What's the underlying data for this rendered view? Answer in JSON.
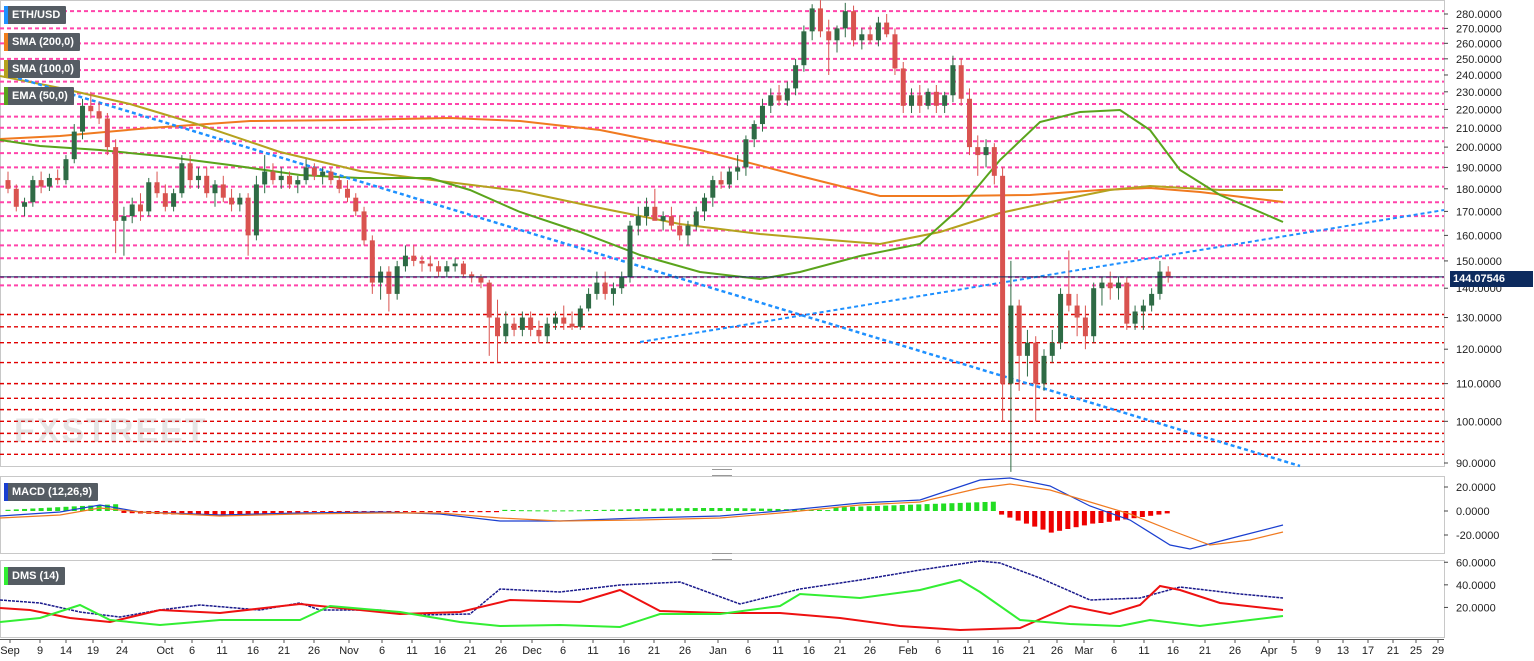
{
  "chart_data": {
    "type": "candlestick",
    "symbol": "ETH/USD",
    "last_price": "144.07546",
    "indicators": [
      {
        "label": "SMA (200,0)",
        "color": "#ef7e1c"
      },
      {
        "label": "SMA (100,0)",
        "color": "#b5a21e"
      },
      {
        "label": "EMA (50,0)",
        "color": "#5aa41c"
      }
    ],
    "price_axis": {
      "ticks": [
        "280.0000",
        "270.0000",
        "260.0000",
        "250.0000",
        "240.0000",
        "230.0000",
        "220.0000",
        "210.0000",
        "200.0000",
        "190.0000",
        "180.0000",
        "170.0000",
        "160.0000",
        "150.0000",
        "140.0000",
        "130.0000",
        "120.0000",
        "110.0000",
        "100.0000",
        "90.0000"
      ],
      "scale": "log",
      "range": [
        88,
        287
      ]
    },
    "x_axis": {
      "ticks": [
        "Sep",
        "9",
        "14",
        "19",
        "24",
        "Oct",
        "6",
        "11",
        "16",
        "21",
        "26",
        "Nov",
        "6",
        "11",
        "16",
        "21",
        "26",
        "Dec",
        "6",
        "11",
        "16",
        "21",
        "26",
        "Jan",
        "6",
        "11",
        "16",
        "21",
        "26",
        "Feb",
        "6",
        "11",
        "16",
        "21",
        "26",
        "Mar",
        "6",
        "11",
        "16",
        "21",
        "26",
        "Apr",
        "5",
        "9",
        "13",
        "17",
        "21",
        "25",
        "29"
      ]
    },
    "horizontal_levels_pink": [
      282,
      270,
      260,
      250,
      243,
      236,
      229,
      223,
      216,
      210,
      203,
      197,
      190,
      181,
      174,
      168,
      162,
      156,
      151,
      144,
      141
    ],
    "horizontal_levels_red": [
      131,
      127,
      122,
      116,
      110,
      106,
      103,
      100,
      97,
      95,
      92
    ],
    "candles": [
      {
        "o": 184,
        "h": 188,
        "l": 178,
        "c": 180
      },
      {
        "o": 180,
        "h": 182,
        "l": 170,
        "c": 172
      },
      {
        "o": 172,
        "h": 176,
        "l": 168,
        "c": 174
      },
      {
        "o": 174,
        "h": 186,
        "l": 172,
        "c": 184
      },
      {
        "o": 184,
        "h": 188,
        "l": 178,
        "c": 181
      },
      {
        "o": 181,
        "h": 187,
        "l": 179,
        "c": 185
      },
      {
        "o": 185,
        "h": 189,
        "l": 182,
        "c": 184
      },
      {
        "o": 184,
        "h": 196,
        "l": 182,
        "c": 194
      },
      {
        "o": 194,
        "h": 212,
        "l": 192,
        "c": 208
      },
      {
        "o": 208,
        "h": 226,
        "l": 204,
        "c": 222
      },
      {
        "o": 222,
        "h": 230,
        "l": 215,
        "c": 219
      },
      {
        "o": 219,
        "h": 224,
        "l": 212,
        "c": 215
      },
      {
        "o": 215,
        "h": 218,
        "l": 196,
        "c": 200
      },
      {
        "o": 200,
        "h": 204,
        "l": 153,
        "c": 166
      },
      {
        "o": 166,
        "h": 172,
        "l": 152,
        "c": 168
      },
      {
        "o": 168,
        "h": 176,
        "l": 165,
        "c": 173
      },
      {
        "o": 173,
        "h": 178,
        "l": 166,
        "c": 170
      },
      {
        "o": 170,
        "h": 185,
        "l": 168,
        "c": 183
      },
      {
        "o": 183,
        "h": 188,
        "l": 176,
        "c": 178
      },
      {
        "o": 178,
        "h": 182,
        "l": 170,
        "c": 172
      },
      {
        "o": 172,
        "h": 180,
        "l": 170,
        "c": 178
      },
      {
        "o": 178,
        "h": 196,
        "l": 176,
        "c": 192
      },
      {
        "o": 192,
        "h": 196,
        "l": 180,
        "c": 184
      },
      {
        "o": 184,
        "h": 190,
        "l": 180,
        "c": 186
      },
      {
        "o": 186,
        "h": 190,
        "l": 176,
        "c": 178
      },
      {
        "o": 178,
        "h": 184,
        "l": 172,
        "c": 182
      },
      {
        "o": 182,
        "h": 186,
        "l": 174,
        "c": 176
      },
      {
        "o": 176,
        "h": 180,
        "l": 170,
        "c": 173
      },
      {
        "o": 173,
        "h": 178,
        "l": 170,
        "c": 176
      },
      {
        "o": 176,
        "h": 178,
        "l": 152,
        "c": 160
      },
      {
        "o": 160,
        "h": 186,
        "l": 158,
        "c": 182
      },
      {
        "o": 182,
        "h": 196,
        "l": 178,
        "c": 188
      },
      {
        "o": 188,
        "h": 192,
        "l": 182,
        "c": 184
      },
      {
        "o": 184,
        "h": 190,
        "l": 180,
        "c": 186
      },
      {
        "o": 186,
        "h": 188,
        "l": 180,
        "c": 182
      },
      {
        "o": 182,
        "h": 186,
        "l": 178,
        "c": 184
      },
      {
        "o": 184,
        "h": 194,
        "l": 182,
        "c": 190
      },
      {
        "o": 190,
        "h": 192,
        "l": 184,
        "c": 186
      },
      {
        "o": 186,
        "h": 190,
        "l": 182,
        "c": 188
      },
      {
        "o": 188,
        "h": 190,
        "l": 182,
        "c": 184
      },
      {
        "o": 184,
        "h": 186,
        "l": 178,
        "c": 180
      },
      {
        "o": 180,
        "h": 184,
        "l": 174,
        "c": 176
      },
      {
        "o": 176,
        "h": 178,
        "l": 168,
        "c": 170
      },
      {
        "o": 170,
        "h": 172,
        "l": 156,
        "c": 158
      },
      {
        "o": 158,
        "h": 160,
        "l": 138,
        "c": 142
      },
      {
        "o": 142,
        "h": 148,
        "l": 136,
        "c": 146
      },
      {
        "o": 146,
        "h": 148,
        "l": 132,
        "c": 138
      },
      {
        "o": 138,
        "h": 150,
        "l": 136,
        "c": 148
      },
      {
        "o": 148,
        "h": 156,
        "l": 146,
        "c": 152
      },
      {
        "o": 152,
        "h": 156,
        "l": 148,
        "c": 150
      },
      {
        "o": 150,
        "h": 152,
        "l": 146,
        "c": 149
      },
      {
        "o": 149,
        "h": 152,
        "l": 146,
        "c": 148
      },
      {
        "o": 148,
        "h": 150,
        "l": 144,
        "c": 146
      },
      {
        "o": 146,
        "h": 150,
        "l": 144,
        "c": 148
      },
      {
        "o": 148,
        "h": 151,
        "l": 146,
        "c": 149
      },
      {
        "o": 149,
        "h": 150,
        "l": 144,
        "c": 145
      },
      {
        "o": 145,
        "h": 146,
        "l": 142,
        "c": 144
      },
      {
        "o": 144,
        "h": 145,
        "l": 140,
        "c": 142
      },
      {
        "o": 142,
        "h": 143,
        "l": 118,
        "c": 130
      },
      {
        "o": 130,
        "h": 136,
        "l": 116,
        "c": 124
      },
      {
        "o": 124,
        "h": 132,
        "l": 122,
        "c": 128
      },
      {
        "o": 128,
        "h": 130,
        "l": 124,
        "c": 126
      },
      {
        "o": 126,
        "h": 132,
        "l": 124,
        "c": 130
      },
      {
        "o": 130,
        "h": 132,
        "l": 124,
        "c": 126
      },
      {
        "o": 126,
        "h": 129,
        "l": 122,
        "c": 124
      },
      {
        "o": 124,
        "h": 130,
        "l": 122,
        "c": 128
      },
      {
        "o": 128,
        "h": 132,
        "l": 126,
        "c": 130
      },
      {
        "o": 130,
        "h": 134,
        "l": 126,
        "c": 128
      },
      {
        "o": 128,
        "h": 132,
        "l": 126,
        "c": 127
      },
      {
        "o": 127,
        "h": 134,
        "l": 126,
        "c": 133
      },
      {
        "o": 133,
        "h": 140,
        "l": 132,
        "c": 138
      },
      {
        "o": 138,
        "h": 146,
        "l": 136,
        "c": 142
      },
      {
        "o": 142,
        "h": 146,
        "l": 136,
        "c": 138
      },
      {
        "o": 138,
        "h": 142,
        "l": 134,
        "c": 140
      },
      {
        "o": 140,
        "h": 146,
        "l": 138,
        "c": 144
      },
      {
        "o": 144,
        "h": 166,
        "l": 142,
        "c": 164
      },
      {
        "o": 164,
        "h": 172,
        "l": 160,
        "c": 168
      },
      {
        "o": 168,
        "h": 176,
        "l": 164,
        "c": 172
      },
      {
        "o": 172,
        "h": 180,
        "l": 168,
        "c": 166
      },
      {
        "o": 166,
        "h": 170,
        "l": 162,
        "c": 168
      },
      {
        "o": 168,
        "h": 172,
        "l": 162,
        "c": 164
      },
      {
        "o": 164,
        "h": 168,
        "l": 158,
        "c": 160
      },
      {
        "o": 160,
        "h": 166,
        "l": 156,
        "c": 164
      },
      {
        "o": 164,
        "h": 172,
        "l": 162,
        "c": 170
      },
      {
        "o": 170,
        "h": 178,
        "l": 166,
        "c": 176
      },
      {
        "o": 176,
        "h": 186,
        "l": 172,
        "c": 184
      },
      {
        "o": 184,
        "h": 188,
        "l": 180,
        "c": 182
      },
      {
        "o": 182,
        "h": 190,
        "l": 180,
        "c": 188
      },
      {
        "o": 188,
        "h": 196,
        "l": 184,
        "c": 190
      },
      {
        "o": 190,
        "h": 206,
        "l": 186,
        "c": 204
      },
      {
        "o": 204,
        "h": 214,
        "l": 200,
        "c": 212
      },
      {
        "o": 212,
        "h": 226,
        "l": 208,
        "c": 222
      },
      {
        "o": 222,
        "h": 232,
        "l": 218,
        "c": 228
      },
      {
        "o": 228,
        "h": 234,
        "l": 222,
        "c": 225
      },
      {
        "o": 225,
        "h": 236,
        "l": 222,
        "c": 232
      },
      {
        "o": 232,
        "h": 250,
        "l": 228,
        "c": 246
      },
      {
        "o": 246,
        "h": 272,
        "l": 242,
        "c": 268
      },
      {
        "o": 268,
        "h": 287,
        "l": 262,
        "c": 284
      },
      {
        "o": 284,
        "h": 290,
        "l": 264,
        "c": 268
      },
      {
        "o": 268,
        "h": 276,
        "l": 240,
        "c": 262
      },
      {
        "o": 262,
        "h": 272,
        "l": 254,
        "c": 270
      },
      {
        "o": 270,
        "h": 288,
        "l": 264,
        "c": 282
      },
      {
        "o": 282,
        "h": 286,
        "l": 258,
        "c": 262
      },
      {
        "o": 262,
        "h": 270,
        "l": 256,
        "c": 266
      },
      {
        "o": 266,
        "h": 272,
        "l": 260,
        "c": 262
      },
      {
        "o": 262,
        "h": 278,
        "l": 258,
        "c": 274
      },
      {
        "o": 274,
        "h": 280,
        "l": 264,
        "c": 266
      },
      {
        "o": 266,
        "h": 270,
        "l": 240,
        "c": 244
      },
      {
        "o": 244,
        "h": 248,
        "l": 218,
        "c": 222
      },
      {
        "o": 222,
        "h": 232,
        "l": 218,
        "c": 228
      },
      {
        "o": 228,
        "h": 234,
        "l": 218,
        "c": 222
      },
      {
        "o": 222,
        "h": 232,
        "l": 220,
        "c": 230
      },
      {
        "o": 230,
        "h": 234,
        "l": 218,
        "c": 222
      },
      {
        "o": 222,
        "h": 230,
        "l": 218,
        "c": 228
      },
      {
        "o": 228,
        "h": 252,
        "l": 224,
        "c": 246
      },
      {
        "o": 246,
        "h": 250,
        "l": 222,
        "c": 226
      },
      {
        "o": 226,
        "h": 232,
        "l": 196,
        "c": 200
      },
      {
        "o": 200,
        "h": 206,
        "l": 186,
        "c": 196
      },
      {
        "o": 196,
        "h": 204,
        "l": 190,
        "c": 200
      },
      {
        "o": 200,
        "h": 202,
        "l": 182,
        "c": 186
      },
      {
        "o": 186,
        "h": 190,
        "l": 100,
        "c": 110
      },
      {
        "o": 110,
        "h": 150,
        "l": 88,
        "c": 134
      },
      {
        "o": 134,
        "h": 136,
        "l": 108,
        "c": 118
      },
      {
        "o": 118,
        "h": 126,
        "l": 112,
        "c": 122
      },
      {
        "o": 122,
        "h": 124,
        "l": 100,
        "c": 110
      },
      {
        "o": 110,
        "h": 120,
        "l": 108,
        "c": 118
      },
      {
        "o": 118,
        "h": 126,
        "l": 116,
        "c": 122
      },
      {
        "o": 122,
        "h": 140,
        "l": 120,
        "c": 138
      },
      {
        "o": 138,
        "h": 154,
        "l": 132,
        "c": 134
      },
      {
        "o": 134,
        "h": 138,
        "l": 124,
        "c": 130
      },
      {
        "o": 130,
        "h": 134,
        "l": 120,
        "c": 124
      },
      {
        "o": 124,
        "h": 142,
        "l": 122,
        "c": 140
      },
      {
        "o": 140,
        "h": 144,
        "l": 134,
        "c": 142
      },
      {
        "o": 142,
        "h": 146,
        "l": 136,
        "c": 140
      },
      {
        "o": 140,
        "h": 144,
        "l": 136,
        "c": 142
      },
      {
        "o": 142,
        "h": 144,
        "l": 126,
        "c": 128
      },
      {
        "o": 128,
        "h": 134,
        "l": 126,
        "c": 132
      },
      {
        "o": 132,
        "h": 136,
        "l": 126,
        "c": 134
      },
      {
        "o": 134,
        "h": 140,
        "l": 132,
        "c": 138
      },
      {
        "o": 138,
        "h": 150,
        "l": 136,
        "c": 146
      },
      {
        "o": 146,
        "h": 148,
        "l": 142,
        "c": 144
      }
    ],
    "macd": {
      "label": "MACD (12,26,9)",
      "ticks": [
        "20.0000",
        "0.0000",
        "-20.0000"
      ]
    },
    "dms": {
      "label": "DMS (14)",
      "ticks": [
        "60.0000",
        "40.0000",
        "20.0000"
      ]
    }
  },
  "colors": {
    "bull": "#2e6b45",
    "bear": "#d9534f",
    "pink_level": "#ff44aa",
    "red_level": "#e00000",
    "trend": "#1e90ff",
    "price_line": "#0d2b5e",
    "macd_line": "#1a3fd0",
    "signal_line": "#f07a20",
    "hist_pos": "#22dd22",
    "hist_neg": "#ee0000",
    "dmi_plus": "#33ee33",
    "dmi_minus": "#ee1111",
    "adx": "#1a1a8c"
  },
  "watermark": "FXSTREET"
}
